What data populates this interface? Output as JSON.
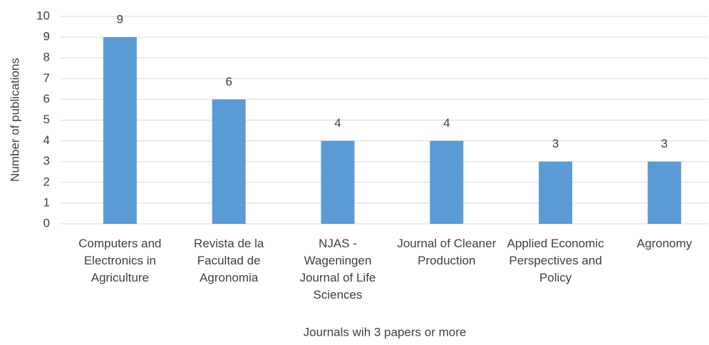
{
  "chart_data": {
    "type": "bar",
    "xlabel": "Journals wih 3 papers or more",
    "ylabel": "Number of publications",
    "categories": [
      "Computers and Electronics in Agriculture",
      "Revista de la Facultad de Agronomia",
      "NJAS - Wageningen Journal of Life Sciences",
      "Journal of Cleaner Production",
      "Applied Economic Perspectives and Policy",
      "Agronomy"
    ],
    "values": [
      9,
      6,
      4,
      4,
      3,
      3
    ],
    "color": "#5b9bd5",
    "ylim": [
      0,
      10
    ],
    "yticks": [
      0,
      1,
      2,
      3,
      4,
      5,
      6,
      7,
      8,
      9,
      10
    ],
    "grid": true
  }
}
